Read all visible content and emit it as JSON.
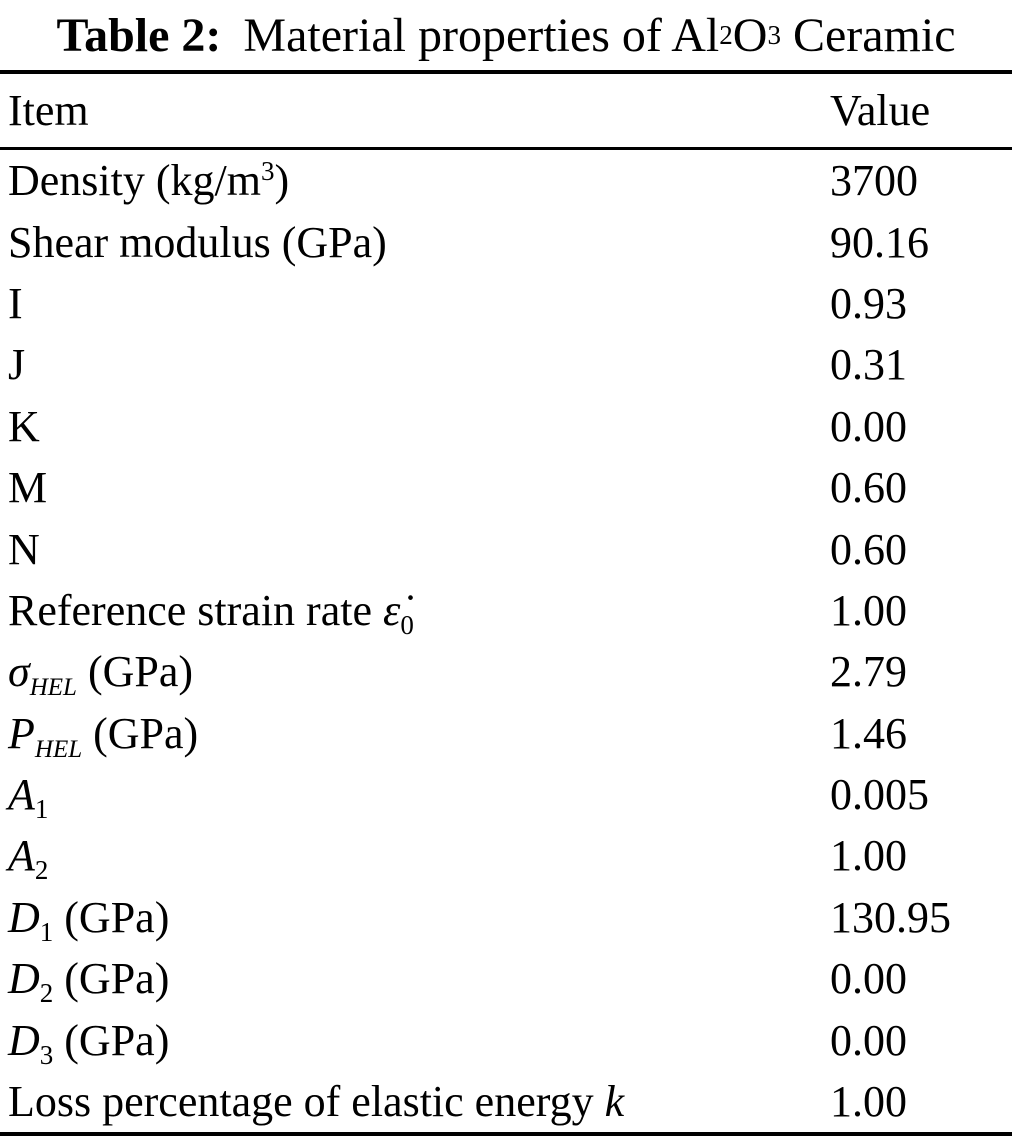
{
  "caption": {
    "segments": [
      {
        "t": "Table 2:",
        "s": "b"
      },
      {
        "t": " Material properties of Al",
        "s": "n"
      },
      {
        "t": "2",
        "s": "sub"
      },
      {
        "t": "O",
        "s": "n"
      },
      {
        "t": "3",
        "s": "sub"
      },
      {
        "t": " Ceramic",
        "s": "n"
      }
    ]
  },
  "header": {
    "item": "Item",
    "value": "Value"
  },
  "rows": [
    {
      "item": [
        {
          "t": "Density (kg/m",
          "s": "n"
        },
        {
          "t": "3",
          "s": "sup"
        },
        {
          "t": ")",
          "s": "n"
        }
      ],
      "value": "3700"
    },
    {
      "item": [
        {
          "t": "Shear modulus (GPa)",
          "s": "n"
        }
      ],
      "value": "90.16"
    },
    {
      "item": [
        {
          "t": "I",
          "s": "n"
        }
      ],
      "value": "0.93"
    },
    {
      "item": [
        {
          "t": "J",
          "s": "n"
        }
      ],
      "value": "0.31"
    },
    {
      "item": [
        {
          "t": "K",
          "s": "n"
        }
      ],
      "value": "0.00"
    },
    {
      "item": [
        {
          "t": "M",
          "s": "n"
        }
      ],
      "value": "0.60"
    },
    {
      "item": [
        {
          "t": "N",
          "s": "n"
        }
      ],
      "value": "0.60"
    },
    {
      "item": [
        {
          "t": "Reference strain rate ",
          "s": "n"
        },
        {
          "t": "ε̇",
          "s": "i"
        },
        {
          "t": "0",
          "s": "sub"
        }
      ],
      "value": "1.00"
    },
    {
      "item": [
        {
          "t": "σ",
          "s": "i"
        },
        {
          "t": "HEL",
          "s": "subi"
        },
        {
          "t": " (GPa)",
          "s": "n"
        }
      ],
      "value": "2.79"
    },
    {
      "item": [
        {
          "t": "P",
          "s": "i"
        },
        {
          "t": "HEL",
          "s": "subi"
        },
        {
          "t": " (GPa)",
          "s": "n"
        }
      ],
      "value": "1.46"
    },
    {
      "item": [
        {
          "t": "A",
          "s": "i"
        },
        {
          "t": "1",
          "s": "sub"
        }
      ],
      "value": "0.005"
    },
    {
      "item": [
        {
          "t": "A",
          "s": "i"
        },
        {
          "t": "2",
          "s": "sub"
        }
      ],
      "value": "1.00"
    },
    {
      "item": [
        {
          "t": "D",
          "s": "i"
        },
        {
          "t": "1",
          "s": "sub"
        },
        {
          "t": " (GPa)",
          "s": "n"
        }
      ],
      "value": "130.95"
    },
    {
      "item": [
        {
          "t": "D",
          "s": "i"
        },
        {
          "t": "2",
          "s": "sub"
        },
        {
          "t": " (GPa)",
          "s": "n"
        }
      ],
      "value": "0.00"
    },
    {
      "item": [
        {
          "t": "D",
          "s": "i"
        },
        {
          "t": "3",
          "s": "sub"
        },
        {
          "t": " (GPa)",
          "s": "n"
        }
      ],
      "value": "0.00"
    },
    {
      "item": [
        {
          "t": "Loss percentage of elastic energy ",
          "s": "n"
        },
        {
          "t": "k",
          "s": "i"
        }
      ],
      "value": "1.00"
    }
  ]
}
